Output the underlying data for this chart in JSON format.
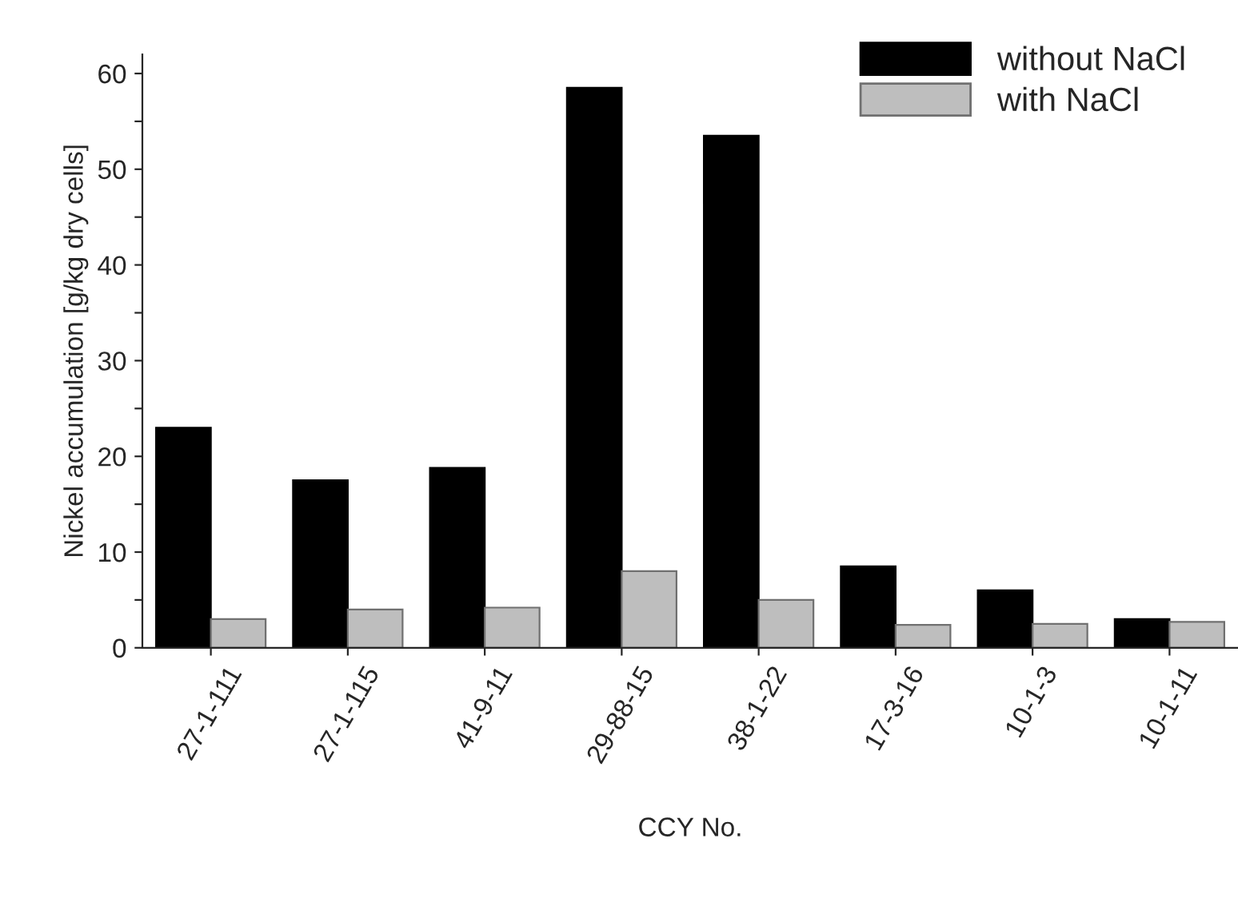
{
  "chart_data": {
    "type": "bar",
    "xlabel": "CCY No.",
    "ylabel": "Nickel accumulation [g/kg dry cells]",
    "categories": [
      "27-1-111",
      "27-1-115",
      "41-9-11",
      "29-88-15",
      "38-1-22",
      "17-3-16",
      "10-1-3",
      "10-1-11"
    ],
    "series": [
      {
        "name": "without NaCl",
        "color": "#000000",
        "values": [
          23.0,
          17.5,
          18.8,
          58.5,
          53.5,
          8.5,
          6.0,
          3.0
        ]
      },
      {
        "name": "with NaCl",
        "color": "#bebebe",
        "values": [
          3.0,
          4.0,
          4.2,
          8.0,
          5.0,
          2.4,
          2.5,
          2.7
        ]
      }
    ],
    "ylim": [
      0,
      62
    ],
    "yticks": [
      0,
      {
        "value": 5,
        "label": null
      },
      10,
      {
        "value": 15,
        "label": null
      },
      20,
      {
        "value": 25,
        "label": null
      },
      30,
      {
        "value": 35,
        "label": null
      },
      40,
      {
        "value": 45,
        "label": null
      },
      50,
      {
        "value": 55,
        "label": null
      },
      60
    ],
    "legend": "top right",
    "grid": false
  }
}
